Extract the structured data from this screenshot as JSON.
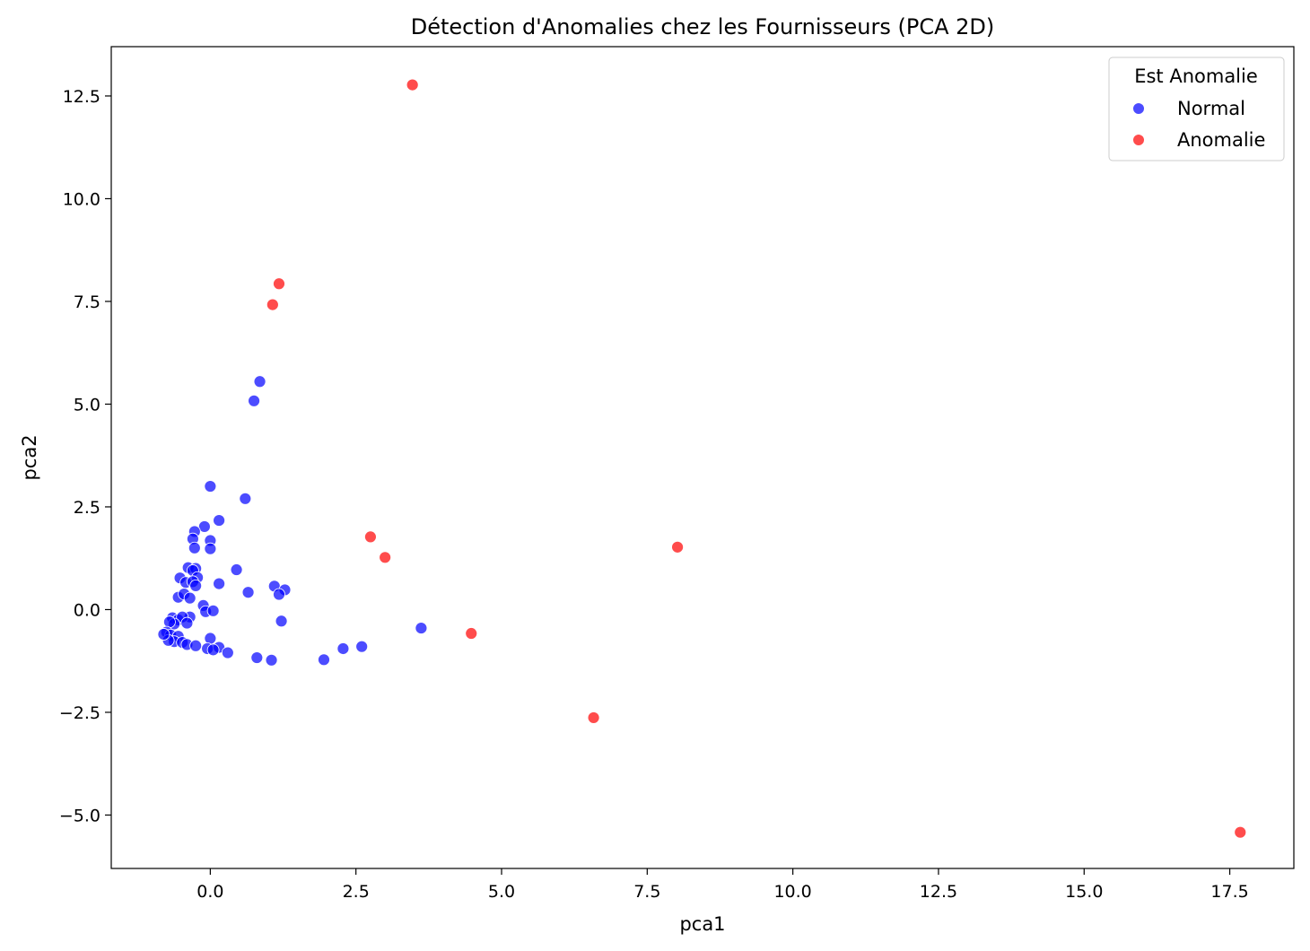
{
  "chart_data": {
    "type": "scatter",
    "title": "Détection d'Anomalies chez les Fournisseurs (PCA 2D)",
    "xlabel": "pca1",
    "ylabel": "pca2",
    "xlim": [
      -1.7,
      18.6
    ],
    "ylim": [
      -6.3,
      13.7
    ],
    "xticks": [
      0.0,
      2.5,
      5.0,
      7.5,
      10.0,
      12.5,
      15.0,
      17.5
    ],
    "xtick_labels": [
      "0.0",
      "2.5",
      "5.0",
      "7.5",
      "10.0",
      "12.5",
      "15.0",
      "17.5"
    ],
    "yticks": [
      -5.0,
      -2.5,
      0.0,
      2.5,
      5.0,
      7.5,
      10.0,
      12.5
    ],
    "ytick_labels": [
      "−5.0",
      "−2.5",
      "0.0",
      "2.5",
      "5.0",
      "7.5",
      "10.0",
      "12.5"
    ],
    "grid": false,
    "legend": {
      "title": "Est Anomalie",
      "position": "top-right"
    },
    "series": [
      {
        "name": "Normal",
        "color": "#0000ff",
        "points": [
          [
            0.85,
            5.55
          ],
          [
            0.75,
            5.08
          ],
          [
            0.0,
            3.0
          ],
          [
            0.6,
            2.7
          ],
          [
            0.15,
            2.17
          ],
          [
            -0.1,
            2.02
          ],
          [
            -0.27,
            1.9
          ],
          [
            -0.3,
            1.72
          ],
          [
            0.0,
            1.68
          ],
          [
            -0.27,
            1.5
          ],
          [
            0.0,
            1.48
          ],
          [
            -0.38,
            1.02
          ],
          [
            -0.25,
            1.0
          ],
          [
            -0.3,
            0.95
          ],
          [
            0.45,
            0.97
          ],
          [
            -0.22,
            0.78
          ],
          [
            -0.52,
            0.77
          ],
          [
            -0.42,
            0.66
          ],
          [
            -0.3,
            0.68
          ],
          [
            -0.25,
            0.58
          ],
          [
            0.15,
            0.63
          ],
          [
            1.1,
            0.57
          ],
          [
            1.28,
            0.48
          ],
          [
            1.18,
            0.37
          ],
          [
            0.65,
            0.42
          ],
          [
            -0.55,
            0.3
          ],
          [
            -0.45,
            0.38
          ],
          [
            -0.35,
            0.28
          ],
          [
            -0.12,
            0.1
          ],
          [
            -0.08,
            -0.05
          ],
          [
            0.05,
            -0.03
          ],
          [
            1.22,
            -0.28
          ],
          [
            -0.65,
            -0.2
          ],
          [
            -0.55,
            -0.25
          ],
          [
            -0.35,
            -0.18
          ],
          [
            -0.48,
            -0.18
          ],
          [
            -0.4,
            -0.33
          ],
          [
            -0.62,
            -0.35
          ],
          [
            -0.7,
            -0.3
          ],
          [
            -0.75,
            -0.55
          ],
          [
            -0.68,
            -0.62
          ],
          [
            -0.55,
            -0.65
          ],
          [
            -0.62,
            -0.78
          ],
          [
            -0.72,
            -0.75
          ],
          [
            -0.8,
            -0.6
          ],
          [
            -0.48,
            -0.8
          ],
          [
            -0.4,
            -0.85
          ],
          [
            -0.25,
            -0.88
          ],
          [
            0.0,
            -0.7
          ],
          [
            0.15,
            -0.92
          ],
          [
            -0.05,
            -0.95
          ],
          [
            0.05,
            -0.98
          ],
          [
            0.3,
            -1.05
          ],
          [
            0.8,
            -1.17
          ],
          [
            1.05,
            -1.23
          ],
          [
            1.95,
            -1.22
          ],
          [
            2.28,
            -0.95
          ],
          [
            2.6,
            -0.9
          ],
          [
            3.62,
            -0.45
          ]
        ]
      },
      {
        "name": "Anomalie",
        "color": "#ff0000",
        "points": [
          [
            3.47,
            12.77
          ],
          [
            1.18,
            7.93
          ],
          [
            1.07,
            7.42
          ],
          [
            2.75,
            1.77
          ],
          [
            3.0,
            1.27
          ],
          [
            8.02,
            1.52
          ],
          [
            4.48,
            -0.58
          ],
          [
            6.58,
            -2.63
          ],
          [
            17.68,
            -5.42
          ]
        ]
      }
    ]
  }
}
